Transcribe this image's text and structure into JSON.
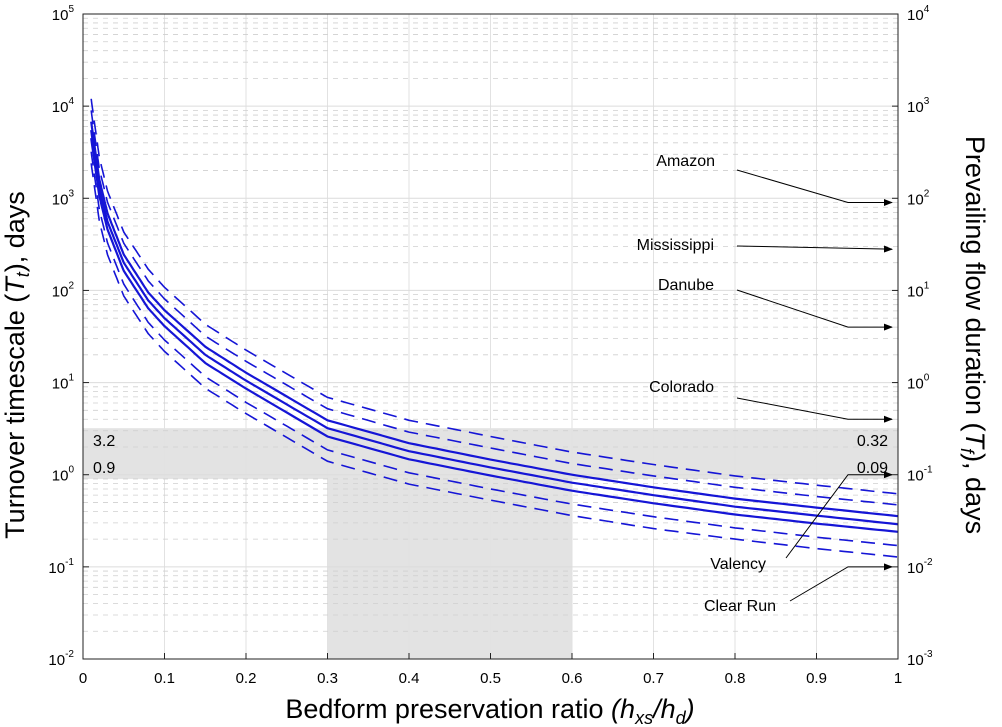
{
  "chart_data": {
    "type": "line",
    "xlabel": "Bedform preservation ratio ",
    "xlabel_math": "(h",
    "xlabel_sub1": "xs",
    "xlabel_mid": "/h",
    "xlabel_sub2": "d",
    "xlabel_end": ")",
    "ylabel_left": "Turnover timescale (",
    "ylabel_left_sym": "T",
    "ylabel_left_sub": "t",
    "ylabel_left_end": "), days",
    "ylabel_right": "Prevailing flow duration (",
    "ylabel_right_sym": "T",
    "ylabel_right_sub": "f",
    "ylabel_right_end": "), days",
    "xlim": [
      0,
      1
    ],
    "ylim_left": [
      0.01,
      100000
    ],
    "ylim_right": [
      0.001,
      10000
    ],
    "y_scale": "log",
    "x_ticks": [
      0,
      0.1,
      0.2,
      0.3,
      0.4,
      0.5,
      0.6,
      0.7,
      0.8,
      0.9,
      1
    ],
    "x_tick_labels": [
      "0",
      "0.1",
      "0.2",
      "0.3",
      "0.4",
      "0.5",
      "0.6",
      "0.7",
      "0.8",
      "0.9",
      "1"
    ],
    "left_ticks": [
      {
        "base": "10",
        "exp": "-2",
        "value": 0.01
      },
      {
        "base": "10",
        "exp": "-1",
        "value": 0.1
      },
      {
        "base": "10",
        "exp": "0",
        "value": 1
      },
      {
        "base": "10",
        "exp": "1",
        "value": 10
      },
      {
        "base": "10",
        "exp": "2",
        "value": 100
      },
      {
        "base": "10",
        "exp": "3",
        "value": 1000
      },
      {
        "base": "10",
        "exp": "4",
        "value": 10000
      },
      {
        "base": "10",
        "exp": "5",
        "value": 100000
      }
    ],
    "right_ticks": [
      {
        "base": "10",
        "exp": "-3",
        "value": 0.001
      },
      {
        "base": "10",
        "exp": "-2",
        "value": 0.01
      },
      {
        "base": "10",
        "exp": "-1",
        "value": 0.1
      },
      {
        "base": "10",
        "exp": "0",
        "value": 1
      },
      {
        "base": "10",
        "exp": "1",
        "value": 10
      },
      {
        "base": "10",
        "exp": "2",
        "value": 100
      },
      {
        "base": "10",
        "exp": "3",
        "value": 1000
      },
      {
        "base": "10",
        "exp": "4",
        "value": 10000
      }
    ],
    "grid": true,
    "line_color": "#1515d6",
    "shade_color": "#e3e3e3",
    "series": [
      {
        "style": "solid",
        "x": [
          0.01,
          0.02,
          0.03,
          0.05,
          0.08,
          0.1,
          0.15,
          0.2,
          0.3,
          0.4,
          0.5,
          0.6,
          0.7,
          0.8,
          0.9,
          1.0
        ],
        "y": [
          5500,
          1300,
          560,
          200,
          78,
          50,
          20,
          10.5,
          3.2,
          1.8,
          1.2,
          0.82,
          0.6,
          0.45,
          0.36,
          0.29
        ]
      },
      {
        "style": "solid",
        "x": [
          0.01,
          0.02,
          0.03,
          0.05,
          0.08,
          0.1,
          0.15,
          0.2,
          0.3,
          0.4,
          0.5,
          0.6,
          0.7,
          0.8,
          0.9,
          1.0
        ],
        "y": [
          6800,
          1600,
          690,
          245,
          95,
          61,
          24.5,
          12.8,
          3.9,
          2.2,
          1.46,
          1.0,
          0.73,
          0.55,
          0.44,
          0.355
        ]
      },
      {
        "style": "solid",
        "x": [
          0.01,
          0.02,
          0.03,
          0.05,
          0.08,
          0.1,
          0.15,
          0.2,
          0.3,
          0.4,
          0.5,
          0.6,
          0.7,
          0.8,
          0.9,
          1.0
        ],
        "y": [
          4500,
          1060,
          460,
          163,
          64,
          41,
          16.3,
          8.6,
          2.6,
          1.47,
          0.98,
          0.67,
          0.49,
          0.37,
          0.295,
          0.24
        ]
      },
      {
        "style": "dashed",
        "x": [
          0.01,
          0.02,
          0.03,
          0.05,
          0.08,
          0.1,
          0.15,
          0.2,
          0.3,
          0.4,
          0.5,
          0.6,
          0.7,
          0.8,
          0.9,
          1.0
        ],
        "y": [
          12000,
          2800,
          1200,
          430,
          170,
          108,
          43,
          22.5,
          6.9,
          3.9,
          2.6,
          1.76,
          1.29,
          0.97,
          0.77,
          0.62
        ]
      },
      {
        "style": "dashed",
        "x": [
          0.01,
          0.02,
          0.03,
          0.05,
          0.08,
          0.1,
          0.15,
          0.2,
          0.3,
          0.4,
          0.5,
          0.6,
          0.7,
          0.8,
          0.9,
          1.0
        ],
        "y": [
          9000,
          2100,
          910,
          325,
          127,
          81,
          32,
          17,
          5.2,
          2.9,
          1.95,
          1.32,
          0.97,
          0.73,
          0.58,
          0.47
        ]
      },
      {
        "style": "dashed",
        "x": [
          0.01,
          0.02,
          0.03,
          0.05,
          0.08,
          0.1,
          0.15,
          0.2,
          0.3,
          0.4,
          0.5,
          0.6,
          0.7,
          0.8,
          0.9,
          1.0
        ],
        "y": [
          3200,
          760,
          330,
          117,
          45,
          29,
          11.6,
          6.1,
          1.86,
          1.05,
          0.7,
          0.48,
          0.35,
          0.265,
          0.21,
          0.17
        ]
      },
      {
        "style": "dashed",
        "x": [
          0.01,
          0.02,
          0.03,
          0.05,
          0.08,
          0.1,
          0.15,
          0.2,
          0.3,
          0.4,
          0.5,
          0.6,
          0.7,
          0.8,
          0.9,
          1.0
        ],
        "y": [
          2400,
          570,
          245,
          87,
          34,
          21.8,
          8.7,
          4.6,
          1.4,
          0.79,
          0.53,
          0.36,
          0.26,
          0.2,
          0.158,
          0.128
        ]
      }
    ],
    "band": {
      "y_low": 0.9,
      "y_high": 3.2,
      "label_low_left": "0.9",
      "label_high_left": "3.2",
      "label_low_right": "0.09",
      "label_high_right": "0.32"
    },
    "x_band": {
      "x_low": 0.3,
      "x_high": 0.6
    },
    "annotations": [
      {
        "label": "Amazon",
        "text_x": 0.7,
        "text_y": 1400,
        "arrow_y_right": 90
      },
      {
        "label": "Mississippi",
        "text_x": 0.7,
        "text_y": 280,
        "arrow_y_right": 28
      },
      {
        "label": "Danube",
        "text_x": 0.7,
        "text_y": 130,
        "arrow_y_right": 4
      },
      {
        "label": "Colorado",
        "text_x": 0.7,
        "text_y": 6.5,
        "arrow_y_right": 0.4
      },
      {
        "label": "Valency",
        "text_x": 0.82,
        "text_y": 0.12,
        "arrow_y_right": 0.1
      },
      {
        "label": "Clear Run",
        "text_x": 0.8,
        "text_y": 0.022,
        "arrow_y_right": 0.01
      }
    ]
  }
}
